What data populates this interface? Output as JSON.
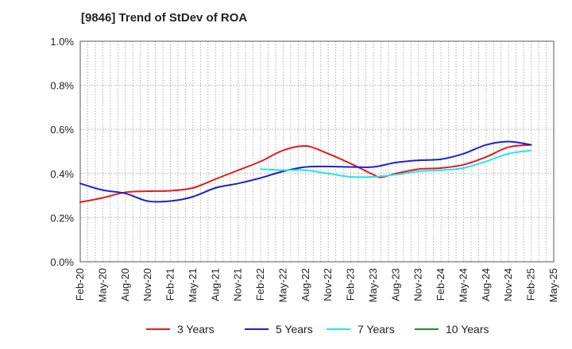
{
  "chart_data": {
    "type": "line",
    "title": "[9846]  Trend of StDev of ROA",
    "xlabel": "",
    "ylabel": "",
    "ylim": [
      0.0,
      1.0
    ],
    "y_ticks": [
      "0.0%",
      "0.2%",
      "0.4%",
      "0.6%",
      "0.8%",
      "1.0%"
    ],
    "x_ticks": [
      "Feb-20",
      "May-20",
      "Aug-20",
      "Nov-20",
      "Feb-21",
      "May-21",
      "Aug-21",
      "Nov-21",
      "Feb-22",
      "May-22",
      "Aug-22",
      "Nov-22",
      "Feb-23",
      "May-23",
      "Aug-23",
      "Nov-23",
      "Feb-24",
      "May-24",
      "Aug-24",
      "Nov-24",
      "Feb-25",
      "May-25"
    ],
    "grid": true,
    "legend_position": "bottom",
    "series": [
      {
        "name": "3 Years",
        "color": "#e31a1c",
        "points": [
          [
            "Feb-20",
            0.27
          ],
          [
            "May-20",
            0.29
          ],
          [
            "Aug-20",
            0.315
          ],
          [
            "Nov-20",
            0.32
          ],
          [
            "Feb-21",
            0.322
          ],
          [
            "May-21",
            0.335
          ],
          [
            "Aug-21",
            0.375
          ],
          [
            "Nov-21",
            0.415
          ],
          [
            "Feb-22",
            0.455
          ],
          [
            "May-22",
            0.505
          ],
          [
            "Aug-22",
            0.525
          ],
          [
            "Nov-22",
            0.49
          ],
          [
            "Feb-23",
            0.445
          ],
          [
            "May-23",
            0.395
          ],
          [
            "Jun-23",
            0.383
          ],
          [
            "Aug-23",
            0.4
          ],
          [
            "Nov-23",
            0.42
          ],
          [
            "Feb-24",
            0.425
          ],
          [
            "May-24",
            0.44
          ],
          [
            "Aug-24",
            0.475
          ],
          [
            "Nov-24",
            0.52
          ],
          [
            "Feb-25",
            0.53
          ]
        ]
      },
      {
        "name": "5 Years",
        "color": "#1f1fc8",
        "points": [
          [
            "Feb-20",
            0.355
          ],
          [
            "May-20",
            0.325
          ],
          [
            "Aug-20",
            0.31
          ],
          [
            "Nov-20",
            0.275
          ],
          [
            "Feb-21",
            0.275
          ],
          [
            "May-21",
            0.295
          ],
          [
            "Aug-21",
            0.335
          ],
          [
            "Nov-21",
            0.355
          ],
          [
            "Feb-22",
            0.38
          ],
          [
            "May-22",
            0.41
          ],
          [
            "Aug-22",
            0.43
          ],
          [
            "Nov-22",
            0.432
          ],
          [
            "Feb-23",
            0.43
          ],
          [
            "May-23",
            0.43
          ],
          [
            "Aug-23",
            0.45
          ],
          [
            "Nov-23",
            0.46
          ],
          [
            "Feb-24",
            0.465
          ],
          [
            "May-24",
            0.49
          ],
          [
            "Aug-24",
            0.53
          ],
          [
            "Nov-24",
            0.545
          ],
          [
            "Feb-25",
            0.53
          ]
        ]
      },
      {
        "name": "7 Years",
        "color": "#22e5ee",
        "points": [
          [
            "Feb-22",
            0.42
          ],
          [
            "May-22",
            0.415
          ],
          [
            "Aug-22",
            0.415
          ],
          [
            "Nov-22",
            0.4
          ],
          [
            "Feb-23",
            0.385
          ],
          [
            "May-23",
            0.385
          ],
          [
            "Aug-23",
            0.395
          ],
          [
            "Nov-23",
            0.41
          ],
          [
            "Feb-24",
            0.415
          ],
          [
            "May-24",
            0.425
          ],
          [
            "Aug-24",
            0.455
          ],
          [
            "Nov-24",
            0.49
          ],
          [
            "Feb-25",
            0.505
          ]
        ]
      },
      {
        "name": "10 Years",
        "color": "#2a8a2a",
        "points": []
      }
    ]
  }
}
